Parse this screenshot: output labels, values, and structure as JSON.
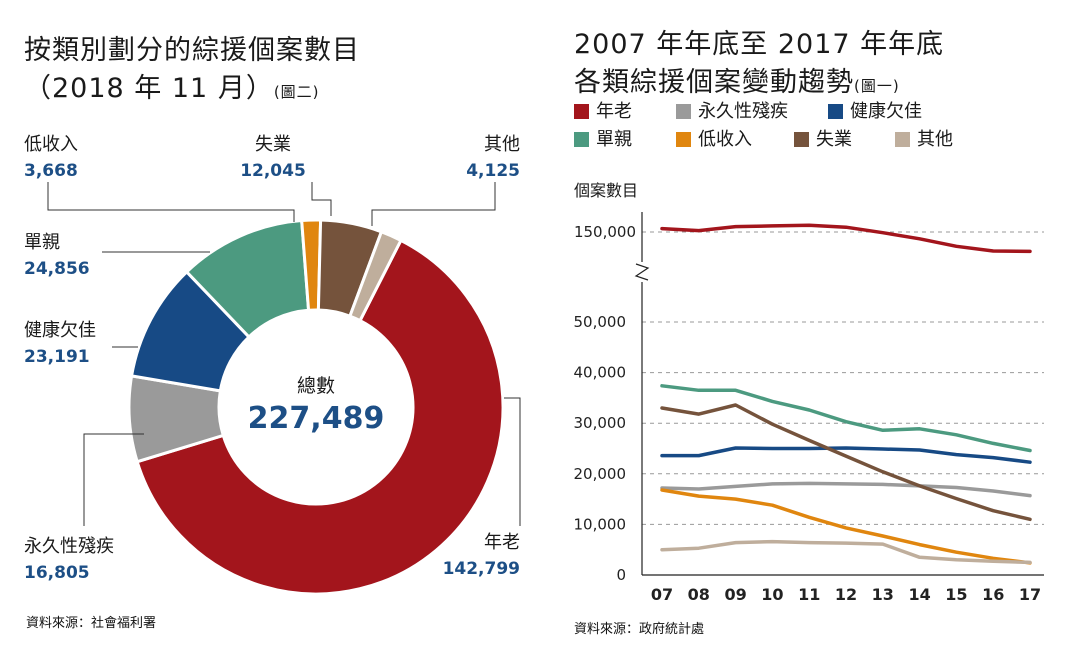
{
  "left": {
    "title_line1": "按類別劃分的綜援個案數目",
    "title_line2": "（2018 年 11 月）",
    "title_note": "(圖二)",
    "source": "資料來源：社會福利署",
    "center_label": "總數",
    "center_value": "227,489"
  },
  "right": {
    "title_line1": "2007 年年底至 2017 年年底",
    "title_line2": "各類綜援個案變動趨勢",
    "title_note": "(圖一)",
    "source": "資料來源：政府統計處",
    "ylabel": "個案數目"
  },
  "colors": {
    "elderly": "#a3151c",
    "disability": "#9a9a9a",
    "illhealth": "#174a85",
    "single_parent": "#4c9a80",
    "low_income": "#e0860f",
    "unemployment": "#75533c",
    "others": "#bfae9c"
  },
  "chart_data": [
    {
      "type": "pie",
      "slices": [
        {
          "name": "年老",
          "label": "年老",
          "value": 142799,
          "value_text": "142,799",
          "color": "#a3151c"
        },
        {
          "name": "永久性殘疾",
          "label": "永久性殘疾",
          "value": 16805,
          "value_text": "16,805",
          "color": "#9a9a9a"
        },
        {
          "name": "健康欠佳",
          "label": "健康欠佳",
          "value": 23191,
          "value_text": "23,191",
          "color": "#174a85"
        },
        {
          "name": "單親",
          "label": "單親",
          "value": 24856,
          "value_text": "24,856",
          "color": "#4c9a80"
        },
        {
          "name": "低收入",
          "label": "低收入",
          "value": 3668,
          "value_text": "3,668",
          "color": "#e0860f"
        },
        {
          "name": "失業",
          "label": "失業",
          "value": 12045,
          "value_text": "12,045",
          "color": "#75533c"
        },
        {
          "name": "其他",
          "label": "其他",
          "value": 4125,
          "value_text": "4,125",
          "color": "#bfae9c"
        }
      ]
    },
    {
      "type": "line",
      "x": [
        "07",
        "08",
        "09",
        "10",
        "11",
        "12",
        "13",
        "14",
        "15",
        "16",
        "17"
      ],
      "ylabel": "個案數目",
      "y_ticks_lower": [
        0,
        10000,
        20000,
        30000,
        40000,
        50000
      ],
      "y_tick_labels_lower": [
        "0",
        "10,000",
        "20,000",
        "30,000",
        "40,000",
        "50,000"
      ],
      "y_tick_upper": 150000,
      "y_tick_label_upper": "150,000",
      "axis_break": true,
      "series": [
        {
          "name": "年老",
          "key": "elderly",
          "color": "#a3151c",
          "values": [
            152500,
            151000,
            154000,
            154500,
            155000,
            153500,
            149500,
            145000,
            139500,
            136000,
            135700
          ]
        },
        {
          "name": "永久性殘疾",
          "key": "disability",
          "color": "#9a9a9a",
          "values": [
            17200,
            17000,
            17500,
            18000,
            18100,
            18000,
            17900,
            17600,
            17300,
            16600,
            15700
          ]
        },
        {
          "name": "健康欠佳",
          "key": "illhealth",
          "color": "#174a85",
          "values": [
            23600,
            23600,
            25100,
            25000,
            25000,
            25100,
            24900,
            24700,
            23800,
            23200,
            22300
          ]
        },
        {
          "name": "單親",
          "key": "single_parent",
          "color": "#4c9a80",
          "values": [
            37400,
            36500,
            36500,
            34300,
            32600,
            30300,
            28600,
            28900,
            27700,
            26000,
            24600
          ]
        },
        {
          "name": "低收入",
          "key": "low_income",
          "color": "#e0860f",
          "values": [
            16800,
            15600,
            15000,
            13800,
            11400,
            9300,
            7700,
            6000,
            4500,
            3300,
            2400
          ]
        },
        {
          "name": "失業",
          "key": "unemployment",
          "color": "#75533c",
          "values": [
            33000,
            31800,
            33600,
            29800,
            26600,
            23500,
            20400,
            17600,
            15100,
            12700,
            11000
          ]
        },
        {
          "name": "其他",
          "key": "others",
          "color": "#bfae9c",
          "values": [
            5000,
            5300,
            6400,
            6600,
            6400,
            6300,
            6100,
            3500,
            3000,
            2700,
            2500
          ]
        }
      ],
      "legend": [
        {
          "label": "年老",
          "color": "#a3151c"
        },
        {
          "label": "永久性殘疾",
          "color": "#9a9a9a"
        },
        {
          "label": "健康欠佳",
          "color": "#174a85"
        },
        {
          "label": "單親",
          "color": "#4c9a80"
        },
        {
          "label": "低收入",
          "color": "#e0860f"
        },
        {
          "label": "失業",
          "color": "#75533c"
        },
        {
          "label": "其他",
          "color": "#bfae9c"
        }
      ],
      "legend_position": "top",
      "grid": "dashed horizontal"
    }
  ]
}
